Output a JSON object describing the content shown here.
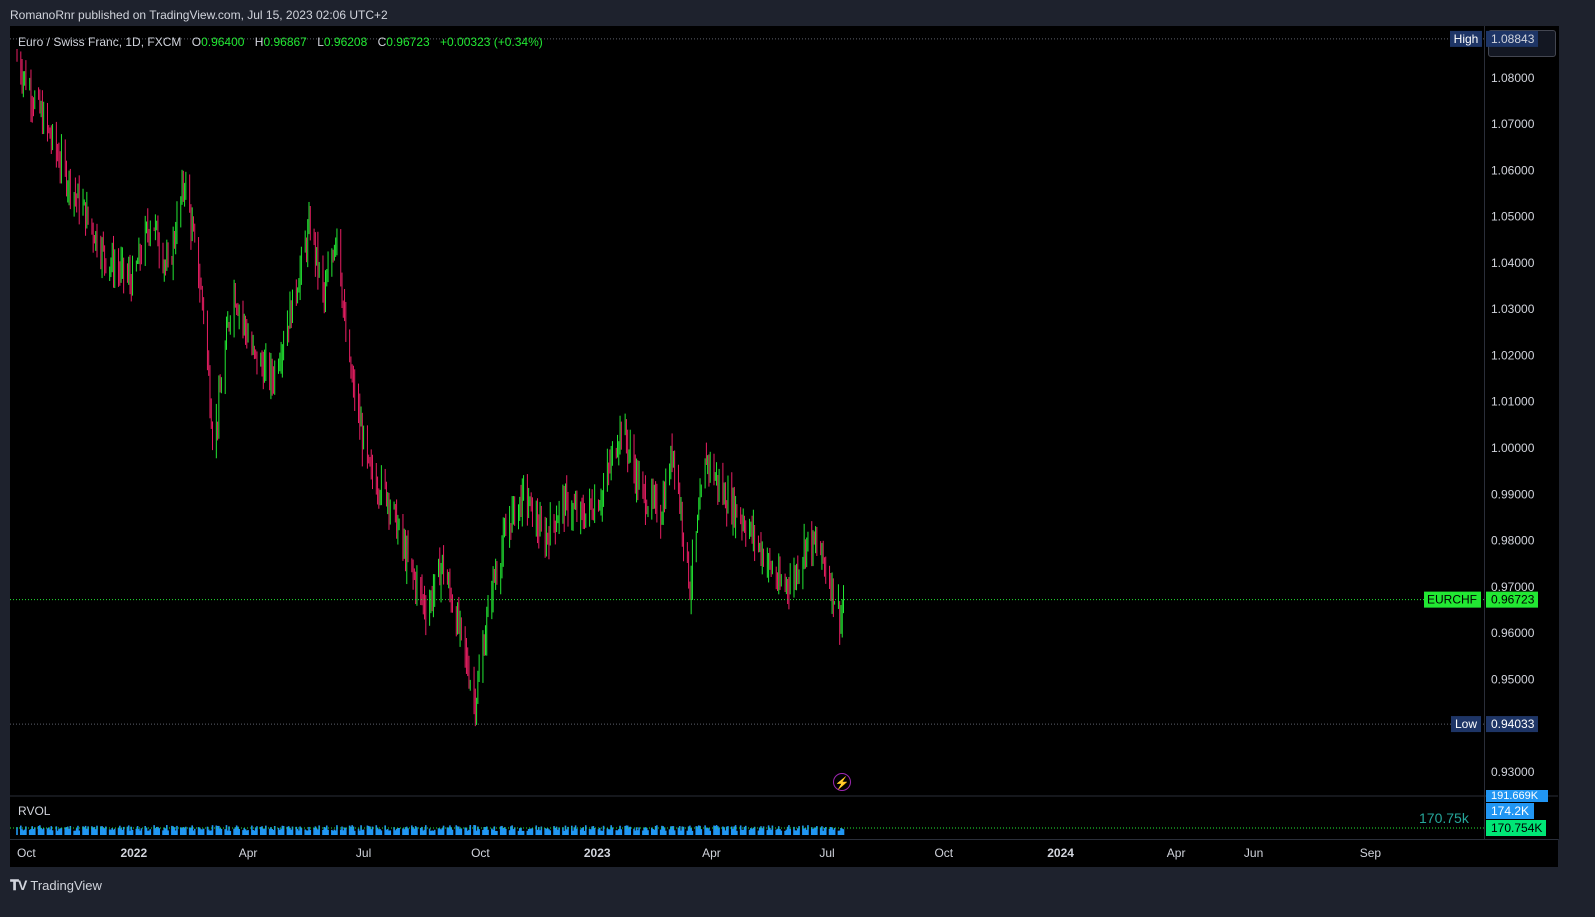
{
  "caption": "RomanoRnr published on TradingView.com, Jul 15, 2023 02:06 UTC+2",
  "legend": {
    "symbol": "Euro / Swiss Franc, 1D, FXCM",
    "o_label": "O",
    "o_value": "0.96400",
    "h_label": "H",
    "h_value": "0.96867",
    "l_label": "L",
    "l_value": "0.96208",
    "c_label": "C",
    "c_value": "0.96723",
    "change": "+0.00323 (+0.34%)"
  },
  "markers": {
    "high_label": "High",
    "high_value": "1.08843",
    "low_label": "Low",
    "low_value": "0.94033",
    "symbol_tag": "EURCHF",
    "last_value": "0.96723"
  },
  "rvol": {
    "label": "RVOL",
    "value_text": "170.75k",
    "tag_top": "191.669K",
    "tag_mid": "174.2K",
    "tag_last": "170.754K"
  },
  "brand": "TradingView",
  "colors": {
    "background": "#000000",
    "up": "#22e833",
    "down": "#e91e63",
    "last_price": "#22e833",
    "volume": "#2196f3",
    "hilo_tag": "#1e3566"
  },
  "chart_data": {
    "type": "candlestick",
    "symbol": "EURCHF",
    "interval": "1D",
    "ylim": [
      0.925,
      1.091
    ],
    "y_ticks": [
      "1.08000",
      "1.07000",
      "1.06000",
      "1.05000",
      "1.04000",
      "1.03000",
      "1.02000",
      "1.01000",
      "1.00000",
      "0.99000",
      "0.98000",
      "0.97000",
      "0.96000",
      "0.95000",
      "0.93000"
    ],
    "x_ticks": [
      "Oct",
      "2022",
      "Apr",
      "Jul",
      "Oct",
      "2023",
      "Apr",
      "Jul",
      "Oct",
      "2024",
      "Apr",
      "Jun",
      "Sep"
    ],
    "price_path": [
      {
        "date": "2021-10-01",
        "close": 1.084
      },
      {
        "date": "2021-10-20",
        "close": 1.072
      },
      {
        "date": "2021-11-10",
        "close": 1.058
      },
      {
        "date": "2021-11-25",
        "close": 1.05
      },
      {
        "date": "2021-12-10",
        "close": 1.041
      },
      {
        "date": "2021-12-31",
        "close": 1.036
      },
      {
        "date": "2022-01-15",
        "close": 1.05
      },
      {
        "date": "2022-01-28",
        "close": 1.038
      },
      {
        "date": "2022-02-10",
        "close": 1.058
      },
      {
        "date": "2022-02-25",
        "close": 1.03
      },
      {
        "date": "2022-03-05",
        "close": 1.0
      },
      {
        "date": "2022-03-20",
        "close": 1.035
      },
      {
        "date": "2022-04-05",
        "close": 1.02
      },
      {
        "date": "2022-04-20",
        "close": 1.015
      },
      {
        "date": "2022-05-05",
        "close": 1.03
      },
      {
        "date": "2022-05-20",
        "close": 1.048
      },
      {
        "date": "2022-05-31",
        "close": 1.032
      },
      {
        "date": "2022-06-10",
        "close": 1.048
      },
      {
        "date": "2022-06-18",
        "close": 1.02
      },
      {
        "date": "2022-07-05",
        "close": 0.995
      },
      {
        "date": "2022-07-20",
        "close": 0.99
      },
      {
        "date": "2022-08-05",
        "close": 0.975
      },
      {
        "date": "2022-08-20",
        "close": 0.965
      },
      {
        "date": "2022-09-01",
        "close": 0.975
      },
      {
        "date": "2022-09-15",
        "close": 0.96
      },
      {
        "date": "2022-09-27",
        "close": 0.945
      },
      {
        "date": "2022-10-10",
        "close": 0.97
      },
      {
        "date": "2022-10-25",
        "close": 0.985
      },
      {
        "date": "2022-11-05",
        "close": 0.99
      },
      {
        "date": "2022-11-20",
        "close": 0.98
      },
      {
        "date": "2022-12-05",
        "close": 0.988
      },
      {
        "date": "2022-12-20",
        "close": 0.985
      },
      {
        "date": "2023-01-05",
        "close": 0.99
      },
      {
        "date": "2023-01-20",
        "close": 1.005
      },
      {
        "date": "2023-02-05",
        "close": 0.99
      },
      {
        "date": "2023-02-20",
        "close": 0.986
      },
      {
        "date": "2023-03-02",
        "close": 1.0
      },
      {
        "date": "2023-03-15",
        "close": 0.97
      },
      {
        "date": "2023-03-28",
        "close": 0.998
      },
      {
        "date": "2023-04-10",
        "close": 0.99
      },
      {
        "date": "2023-04-25",
        "close": 0.985
      },
      {
        "date": "2023-05-10",
        "close": 0.978
      },
      {
        "date": "2023-05-25",
        "close": 0.97
      },
      {
        "date": "2023-06-05",
        "close": 0.972
      },
      {
        "date": "2023-06-15",
        "close": 0.98
      },
      {
        "date": "2023-06-25",
        "close": 0.978
      },
      {
        "date": "2023-07-05",
        "close": 0.97
      },
      {
        "date": "2023-07-12",
        "close": 0.963
      },
      {
        "date": "2023-07-14",
        "close": 0.967
      }
    ]
  }
}
